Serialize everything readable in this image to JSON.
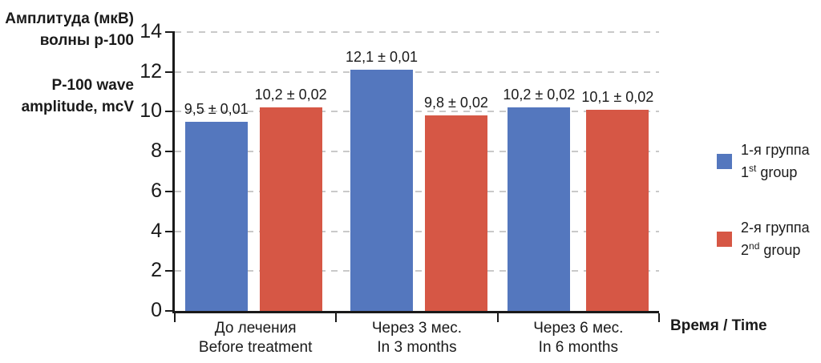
{
  "figure": {
    "y_axis_title": {
      "ru_line1": "Амплитуда (мкВ)",
      "ru_line2": "волны р-100",
      "en_line1": "P-100 wave",
      "en_line2": "amplitude, mcV"
    },
    "x_axis_title": "Время / Time"
  },
  "legend": {
    "items": [
      {
        "label_ru": "1-я группа",
        "en_num": "1",
        "en_sup": "st",
        "en_rest": " group",
        "color": "#5477BE"
      },
      {
        "label_ru": "2-я группа",
        "en_num": "2",
        "en_sup": "nd",
        "en_rest": " group",
        "color": "#D65745"
      }
    ]
  },
  "chart_data": {
    "type": "bar",
    "title": "",
    "ylabel": "Амплитуда (мкВ) волны р-100 / P-100 wave amplitude, mcV",
    "xlabel": "Время / Time",
    "ylim": [
      0,
      14
    ],
    "y_ticks": [
      0,
      2,
      4,
      6,
      8,
      10,
      12,
      14
    ],
    "grid": "horizontal-dashed",
    "legend_position": "right",
    "categories": [
      {
        "ru": "До лечения",
        "en": "Before treatment"
      },
      {
        "ru": "Через 3 мес.",
        "en": "In 3 months"
      },
      {
        "ru": "Через 6 мес.",
        "en": "In 6 months"
      }
    ],
    "series": [
      {
        "name_ru": "1-я группа",
        "name_en": "1st group",
        "color": "#5477BE",
        "values": [
          9.5,
          12.1,
          10.2
        ],
        "labels": [
          "9,5 ± 0,01",
          "12,1 ± 0,01",
          "10,2 ± 0,02"
        ]
      },
      {
        "name_ru": "2-я группа",
        "name_en": "2nd group",
        "color": "#D65745",
        "values": [
          10.2,
          9.8,
          10.1
        ],
        "labels": [
          "10,2 ± 0,02",
          "9,8 ± 0,02",
          "10,1 ± 0,02"
        ]
      }
    ],
    "colors": {
      "grid": "#C9C9C9",
      "axis": "#1A1A1A",
      "text": "#1A1A1A"
    }
  }
}
